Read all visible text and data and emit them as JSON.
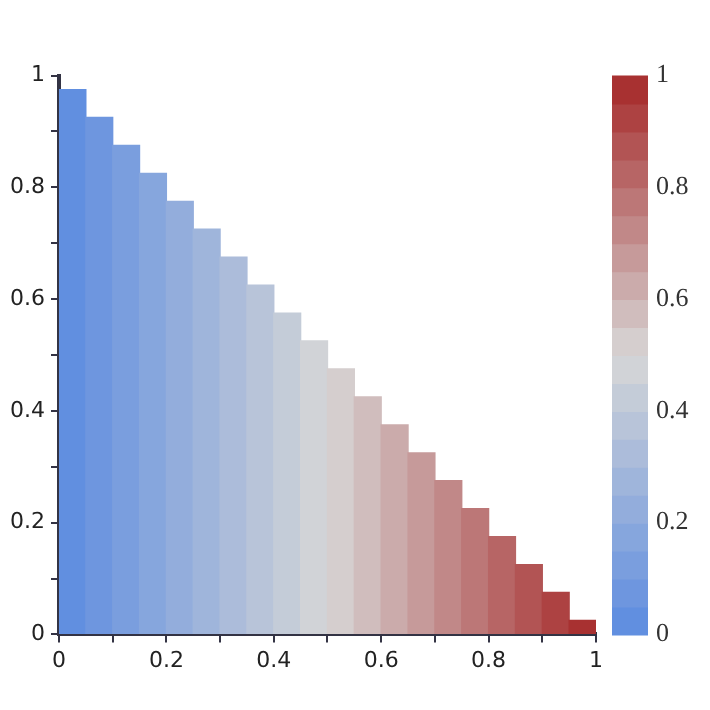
{
  "chart_data": {
    "type": "bar",
    "x": [
      0.025,
      0.075,
      0.125,
      0.175,
      0.225,
      0.275,
      0.325,
      0.375,
      0.425,
      0.475,
      0.525,
      0.575,
      0.625,
      0.675,
      0.725,
      0.775,
      0.825,
      0.875,
      0.925,
      0.975
    ],
    "values": [
      0.975,
      0.925,
      0.875,
      0.825,
      0.775,
      0.725,
      0.675,
      0.625,
      0.575,
      0.525,
      0.475,
      0.425,
      0.375,
      0.325,
      0.275,
      0.225,
      0.175,
      0.125,
      0.075,
      0.025
    ],
    "cvalues": [
      0.025,
      0.075,
      0.125,
      0.175,
      0.225,
      0.275,
      0.325,
      0.375,
      0.425,
      0.475,
      0.525,
      0.575,
      0.625,
      0.675,
      0.725,
      0.775,
      0.825,
      0.875,
      0.925,
      0.975
    ],
    "xlim": [
      0,
      1
    ],
    "xticks": [
      0,
      {
        "value": 0.1,
        "label": null
      },
      0.2,
      {
        "value": 0.3,
        "label": null
      },
      0.4,
      {
        "value": 0.5,
        "label": null
      },
      0.6,
      {
        "value": 0.7,
        "label": null
      },
      0.8,
      {
        "value": 0.9,
        "label": null
      },
      1
    ],
    "ylim": [
      0,
      1
    ],
    "yticks": [
      0,
      {
        "value": 0.1,
        "label": null
      },
      0.2,
      {
        "value": 0.3,
        "label": null
      },
      0.4,
      {
        "value": 0.5,
        "label": null
      },
      0.6,
      {
        "value": 0.7,
        "label": null
      },
      0.8,
      {
        "value": 0.9,
        "label": null
      },
      1
    ],
    "clim": [
      0,
      1
    ],
    "cticks": [
      0,
      0.2,
      0.4,
      0.6,
      0.8,
      1
    ],
    "grid": false,
    "legend": false
  }
}
